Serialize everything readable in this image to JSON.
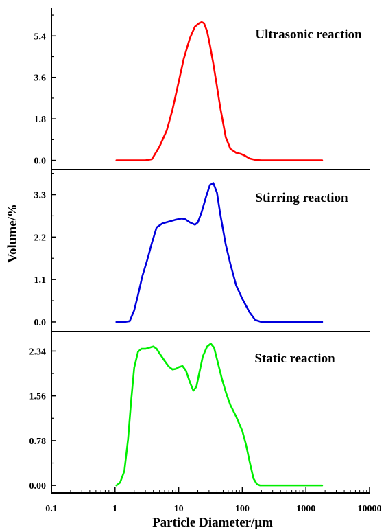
{
  "chart_data": {
    "type": "line",
    "xlabel": "Particle Diameter/μm",
    "ylabel": "Volume/%",
    "x_scale": "log",
    "xlim": [
      0.1,
      10000
    ],
    "x_ticks": [
      {
        "value": 0.1,
        "label": "0.1"
      },
      {
        "value": 1,
        "label": "1"
      },
      {
        "value": 10,
        "label": "10"
      },
      {
        "value": 100,
        "label": "100"
      },
      {
        "value": 1000,
        "label": "1000"
      },
      {
        "value": 10000,
        "label": "10000"
      }
    ],
    "panels": [
      {
        "title": "Ultrasonic reaction",
        "color": "#ff0000",
        "ylim": [
          -0.4,
          6.6
        ],
        "y_ticks": [
          {
            "value": 0.0,
            "label": "0.0"
          },
          {
            "value": 1.8,
            "label": "1.8"
          },
          {
            "value": 3.6,
            "label": "3.6"
          },
          {
            "value": 5.4,
            "label": "5.4"
          }
        ],
        "x": [
          1.05,
          2,
          3,
          3.8,
          5,
          6.5,
          8,
          10,
          12,
          15,
          18,
          21,
          23,
          25,
          28,
          31,
          35,
          40,
          45,
          55,
          65,
          80,
          95,
          110,
          130,
          160,
          200,
          300,
          500,
          800,
          1200,
          1800
        ],
        "y": [
          0.0,
          0.0,
          0.0,
          0.05,
          0.6,
          1.3,
          2.2,
          3.4,
          4.4,
          5.3,
          5.8,
          5.95,
          6.0,
          5.95,
          5.6,
          5.0,
          4.2,
          3.2,
          2.3,
          1.0,
          0.5,
          0.33,
          0.28,
          0.2,
          0.08,
          0.02,
          0.0,
          0.0,
          0.0,
          0.0,
          0.0,
          0.0
        ]
      },
      {
        "title": "Stirring reaction",
        "color": "#0000dd",
        "ylim": [
          -0.25,
          3.95
        ],
        "y_ticks": [
          {
            "value": 0.0,
            "label": "0.0"
          },
          {
            "value": 1.1,
            "label": "1.1"
          },
          {
            "value": 2.2,
            "label": "2.2"
          },
          {
            "value": 3.3,
            "label": "3.3"
          }
        ],
        "x": [
          1.05,
          1.4,
          1.7,
          2,
          2.3,
          2.7,
          3.2,
          3.8,
          4.5,
          5.5,
          7,
          9,
          11,
          12.5,
          15,
          18,
          20,
          23,
          27,
          31,
          35,
          40,
          45,
          55,
          65,
          80,
          100,
          130,
          160,
          200,
          300,
          500,
          1000,
          1800
        ],
        "y": [
          0.0,
          0.0,
          0.02,
          0.3,
          0.7,
          1.2,
          1.6,
          2.05,
          2.45,
          2.55,
          2.6,
          2.65,
          2.68,
          2.67,
          2.58,
          2.52,
          2.58,
          2.85,
          3.25,
          3.55,
          3.6,
          3.35,
          2.8,
          2.0,
          1.5,
          0.95,
          0.6,
          0.25,
          0.05,
          0.0,
          0.0,
          0.0,
          0.0,
          0.0
        ]
      },
      {
        "title": "Static reaction",
        "color": "#00ee00",
        "ylim": [
          -0.13,
          2.68
        ],
        "y_ticks": [
          {
            "value": 0.0,
            "label": "0.00"
          },
          {
            "value": 0.78,
            "label": "0.78"
          },
          {
            "value": 1.56,
            "label": "1.56"
          },
          {
            "value": 2.34,
            "label": "2.34"
          }
        ],
        "x": [
          1.05,
          1.2,
          1.4,
          1.6,
          1.8,
          2,
          2.3,
          2.6,
          3,
          3.5,
          4,
          4.5,
          5,
          6,
          7,
          8,
          9,
          10,
          11.5,
          13,
          15,
          17,
          19,
          21,
          24,
          28,
          32,
          36,
          40,
          48,
          56,
          65,
          80,
          100,
          115,
          130,
          150,
          170,
          190,
          250,
          400,
          800,
          1800
        ],
        "y": [
          0.0,
          0.05,
          0.25,
          0.8,
          1.5,
          2.05,
          2.33,
          2.38,
          2.38,
          2.4,
          2.42,
          2.38,
          2.3,
          2.17,
          2.07,
          2.02,
          2.03,
          2.06,
          2.08,
          2.0,
          1.8,
          1.65,
          1.72,
          1.95,
          2.25,
          2.42,
          2.47,
          2.4,
          2.2,
          1.85,
          1.6,
          1.4,
          1.2,
          0.95,
          0.7,
          0.42,
          0.12,
          0.02,
          0.0,
          0.0,
          0.0,
          0.0,
          0.0
        ]
      }
    ]
  }
}
